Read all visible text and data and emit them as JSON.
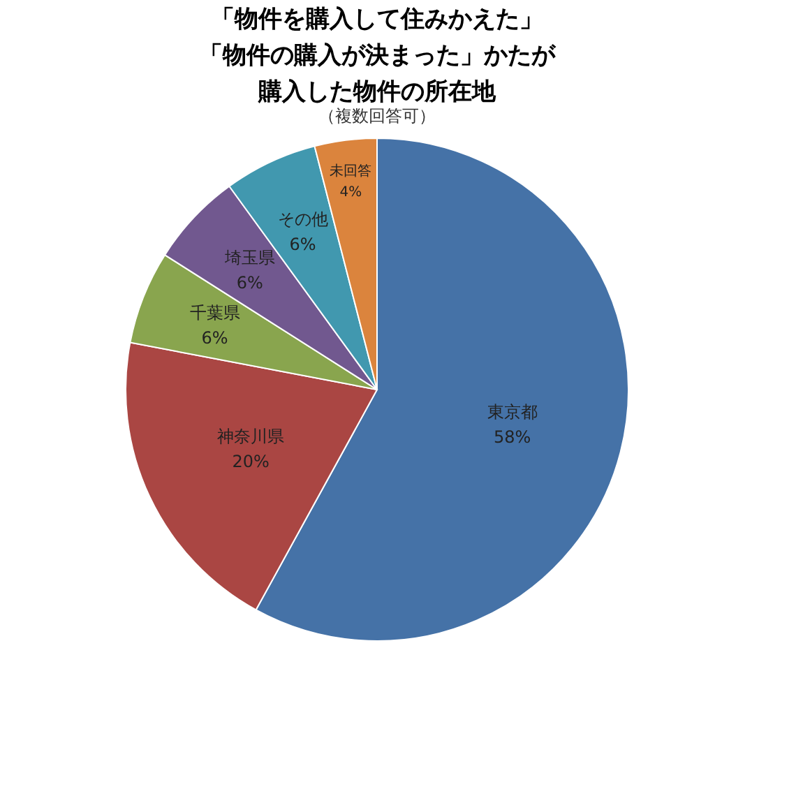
{
  "chart_data": {
    "type": "pie",
    "title": [
      "「物件を購入して住みかえた」",
      "「物件の購入が決まった」かたが",
      "購入した物件の所在地"
    ],
    "subtitle": "（複数回答可）",
    "categories": [
      "東京都",
      "神奈川県",
      "千葉県",
      "埼玉県",
      "その他",
      "未回答"
    ],
    "values": [
      58,
      20,
      6,
      6,
      6,
      4
    ],
    "value_labels": [
      "58%",
      "20%",
      "6%",
      "6%",
      "6%",
      "4%"
    ],
    "colors": [
      "#4572a7",
      "#aa4643",
      "#89a54e",
      "#71588f",
      "#4198af",
      "#db843d"
    ],
    "legend": false
  }
}
